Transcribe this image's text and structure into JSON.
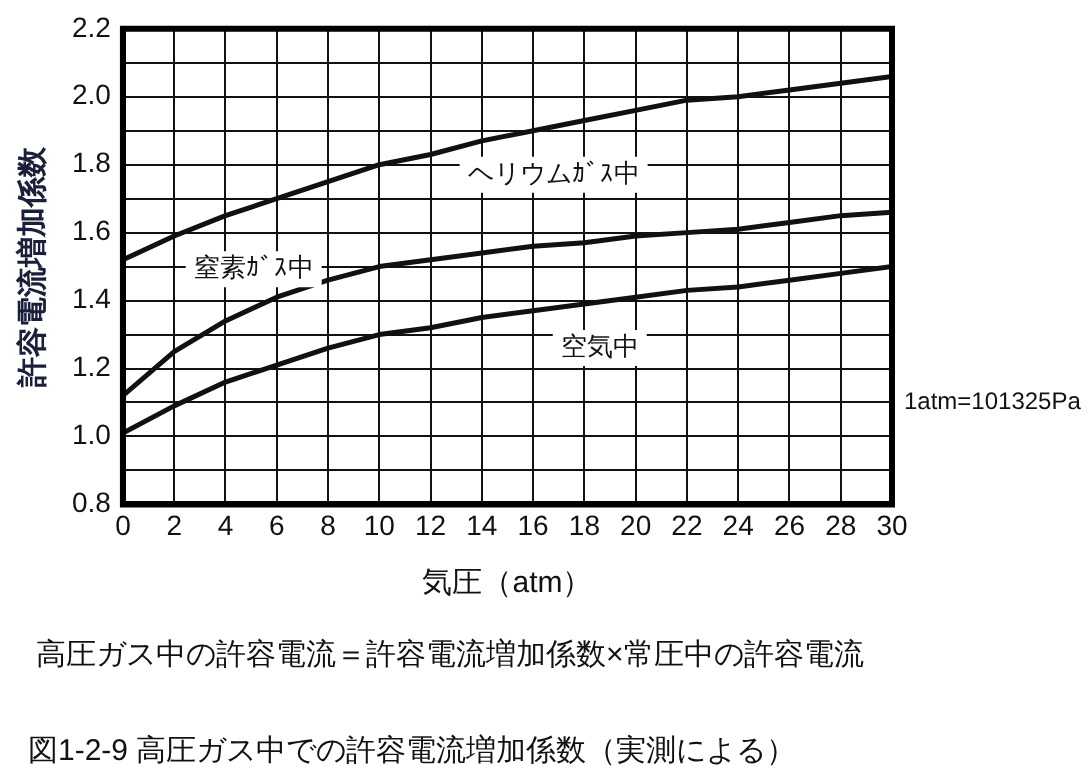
{
  "chart_data": {
    "type": "line",
    "xlabel": "気圧（atm）",
    "ylabel": "許容電流増加係数",
    "x": [
      0,
      2,
      4,
      6,
      8,
      10,
      12,
      14,
      16,
      18,
      20,
      22,
      24,
      26,
      28,
      30
    ],
    "series": [
      {
        "name": "ヘリウムｶﾞｽ中",
        "color": "#111111",
        "values": [
          1.52,
          1.59,
          1.65,
          1.7,
          1.75,
          1.8,
          1.83,
          1.87,
          1.9,
          1.93,
          1.96,
          1.99,
          2.0,
          2.02,
          2.04,
          2.06
        ]
      },
      {
        "name": "窒素ｶﾞｽ中",
        "color": "#111111",
        "values": [
          1.12,
          1.25,
          1.34,
          1.41,
          1.46,
          1.5,
          1.52,
          1.54,
          1.56,
          1.57,
          1.59,
          1.6,
          1.61,
          1.63,
          1.65,
          1.66
        ]
      },
      {
        "name": "空気中",
        "color": "#111111",
        "values": [
          1.01,
          1.09,
          1.16,
          1.21,
          1.26,
          1.3,
          1.32,
          1.35,
          1.37,
          1.39,
          1.41,
          1.43,
          1.44,
          1.46,
          1.48,
          1.5
        ]
      }
    ],
    "xlim": [
      0,
      30
    ],
    "xticks": [
      0,
      2,
      4,
      6,
      8,
      10,
      12,
      14,
      16,
      18,
      20,
      22,
      24,
      26,
      28,
      30
    ],
    "ylim": [
      0.8,
      2.2
    ],
    "yticks": [
      0.8,
      {
        "value": 0.9,
        "label": null
      },
      {
        "value": 1,
        "label": "1.0"
      },
      {
        "value": 1.1,
        "label": null
      },
      1.2,
      {
        "value": 1.3,
        "label": null
      },
      1.4,
      {
        "value": 1.5,
        "label": null
      },
      1.6,
      {
        "value": 1.7,
        "label": null
      },
      1.8,
      {
        "value": 1.9,
        "label": null
      },
      {
        "value": 2,
        "label": "2.0"
      },
      {
        "value": 2.1,
        "label": null
      },
      2.2
    ],
    "grid": true,
    "legend": false,
    "marker": "none",
    "line_style": "solid",
    "annotations": [
      "1atm=101325Pa",
      "高圧ガス中の許容電流＝許容電流増加係数×常圧中の許容電流",
      "図1-2-9  高圧ガス中での許容電流増加係数（実測による）"
    ]
  }
}
